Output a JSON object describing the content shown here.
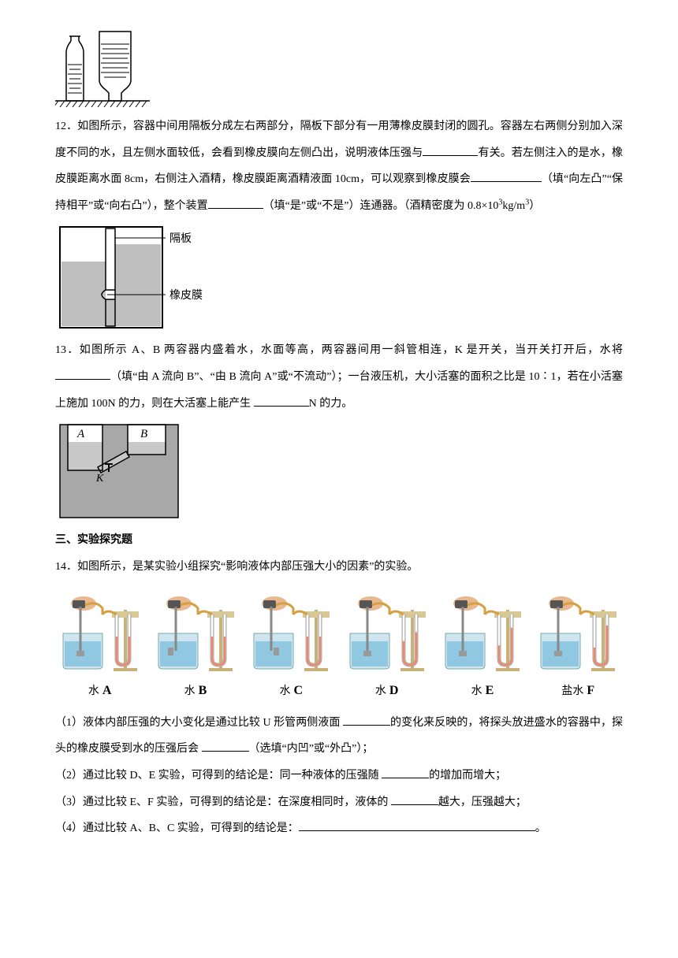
{
  "q12": {
    "text1": "12．如图所示，容器中间用隔板分成左右两部分，隔板下部分有一用薄橡皮膜封闭的圆孔。容器左右两侧分别加入深度不同的水，且左侧水面较低，会看到橡皮膜向左侧凸出，说明液体压强与",
    "text2": "有关。若左侧注入的是水，橡皮膜距离水面 8cm，右侧注入酒精，橡皮膜距离酒精液面 10cm，可以观察到橡皮膜会",
    "text3": "（填“向左凸”“保持相平”或“向右凸”），整个装置",
    "text4": "（填“是”或“不是”）连通器。（酒精密度为 0.8×10",
    "text5": "kg/m",
    "text6": "）",
    "label1": "隔板",
    "label2": "橡皮膜"
  },
  "q13": {
    "text1": "13．如图所示 A、B 两容器内盛着水，水面等高，两容器间用一斜管相连，K 是开关，当开关打开后，水将",
    "text2": "（填“由 A 流向 B”、“由 B 流向 A”或“不流动”）；一台液压机，大小活塞的面积之比是 10∶1，若在小活塞上施加 100N 的力，则在大活塞上能产生 ",
    "text3": "N 的力。",
    "labelA": "A",
    "labelB": "B",
    "labelK": "K"
  },
  "sect3": "三、实验探究题",
  "q14": {
    "text1": "14．如图所示，是某实验小组探究“影响液体内部压强大小的因素”的实验。",
    "liquid_water": "水",
    "liquid_salt": "盐水",
    "letters": [
      "A",
      "B",
      "C",
      "D",
      "E",
      "F"
    ],
    "p1a": "（1）液体内部压强的大小变化是通过比较 U 形管两侧液面 ",
    "p1b": "的变化来反映的，将探头放进盛水的容器中，探头的橡皮膜受到水的压强后会 ",
    "p1c": "（选填“内凹”或“外凸”）；",
    "p2a": "（2）通过比较 D、E 实验，可得到的结论是：同一种液体的压强随 ",
    "p2b": "的增加而增大；",
    "p3a": "（3）通过比较 E、F 实验，可得到的结论是：在深度相同时，液体的 ",
    "p3b": "越大，压强越大；",
    "p4a": "（4）通过比较 A、B、C 实验，可得到的结论是：",
    "p4b": "。"
  },
  "colors": {
    "water": "#7fb8d4",
    "beaker": "#b8d4e0",
    "hand": "#e8b890",
    "tube": "#888",
    "box": "#999"
  }
}
